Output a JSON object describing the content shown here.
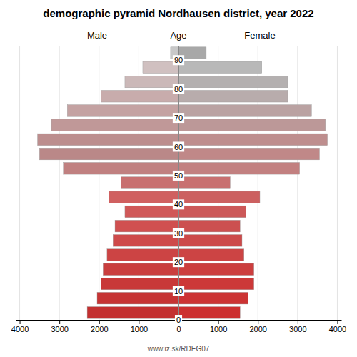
{
  "chart_data": {
    "type": "pyramid",
    "orientation": "horizontal",
    "title": "demographic pyramid Nordhausen district, year 2022",
    "ylabel": "Age",
    "annotations": [
      {
        "text": "www.iz.sk/RDEG07"
      }
    ],
    "y": [
      0,
      5,
      10,
      15,
      20,
      25,
      30,
      35,
      40,
      45,
      50,
      55,
      60,
      65,
      70,
      75,
      80,
      85,
      90
    ],
    "series": [
      {
        "name": "Male",
        "values": [
          2300,
          2050,
          1950,
          1900,
          1800,
          1650,
          1600,
          1350,
          1750,
          1450,
          2900,
          3500,
          3550,
          3200,
          2800,
          1950,
          1350,
          900,
          200
        ],
        "colors": [
          "#c33030",
          "#c63434",
          "#c83838",
          "#ca3e3e",
          "#cc4444",
          "#ce4a4a",
          "#d05050",
          "#d05858",
          "#d06060",
          "#c87070",
          "#c08080",
          "#ba8888",
          "#bc8e8e",
          "#c09898",
          "#c4a2a2",
          "#c8acac",
          "#cbb8b8",
          "#d0c0c0",
          "#c8c8c8"
        ]
      },
      {
        "name": "Female",
        "values": [
          1550,
          1750,
          1900,
          1900,
          1650,
          1600,
          1550,
          1700,
          2050,
          1300,
          3050,
          3550,
          3750,
          3700,
          3350,
          2750,
          2750,
          2100,
          700
        ],
        "colors": [
          "#cc3030",
          "#cc3434",
          "#cc3838",
          "#cc3e3e",
          "#cc4444",
          "#cc4a4a",
          "#cc5050",
          "#cc5858",
          "#cc6060",
          "#c87070",
          "#c28080",
          "#c08888",
          "#be8e8e",
          "#bc9898",
          "#baa2a2",
          "#b8acac",
          "#b4b0b0",
          "#b8b8b8",
          "#a8a8a8"
        ]
      }
    ],
    "xlim": [
      0,
      4100
    ],
    "xticks": [
      0,
      1000,
      2000,
      3000,
      4000
    ],
    "ylim": [
      0,
      95
    ],
    "yticks": [
      0,
      10,
      20,
      30,
      40,
      50,
      60,
      70,
      80,
      90
    ],
    "grid": true
  }
}
